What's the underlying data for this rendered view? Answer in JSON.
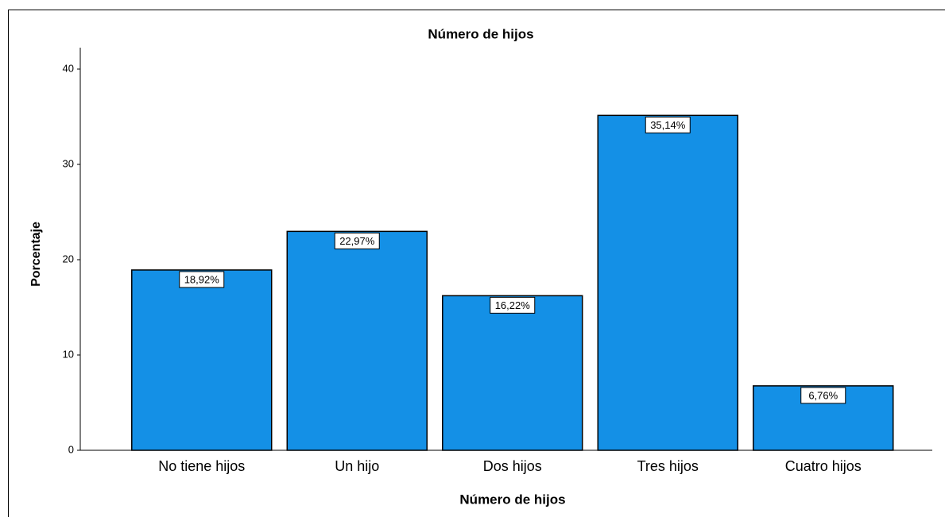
{
  "chart_data": {
    "type": "bar",
    "title": "Número de hijos",
    "x_label": "Número de hijos",
    "y_label": "Porcentaje",
    "categories": [
      "No tiene hijos",
      "Un hijo",
      "Dos hijos",
      "Tres hijos",
      "Cuatro hijos"
    ],
    "values": [
      18.92,
      22.97,
      16.22,
      35.14,
      6.76
    ],
    "value_labels": [
      "18,92%",
      "22,97%",
      "16,22%",
      "35,14%",
      "6,76%"
    ],
    "color": "#1490e6",
    "ylim": [
      0,
      40
    ],
    "yticks": [
      0,
      10,
      20,
      30,
      40
    ],
    "grid": false
  }
}
